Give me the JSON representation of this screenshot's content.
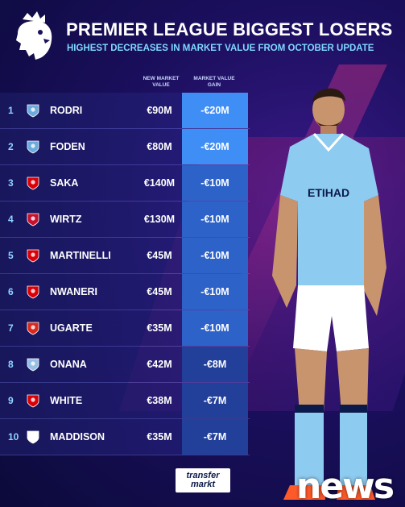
{
  "header": {
    "title": "PREMIER LEAGUE BIGGEST LOSERS",
    "subtitle": "HIGHEST DECREASES IN MARKET VALUE FROM OCTOBER UPDATE"
  },
  "columns": {
    "value": "NEW MARKET VALUE",
    "gain": "MARKET VALUE GAIN"
  },
  "rows": [
    {
      "rank": "1",
      "club_icon": "man-city-crest",
      "name": "RODRI",
      "value": "€90M",
      "gain": "-€20M"
    },
    {
      "rank": "2",
      "club_icon": "man-city-crest",
      "name": "FODEN",
      "value": "€80M",
      "gain": "-€20M"
    },
    {
      "rank": "3",
      "club_icon": "arsenal-crest",
      "name": "SAKA",
      "value": "€140M",
      "gain": "-€10M"
    },
    {
      "rank": "4",
      "club_icon": "liverpool-crest",
      "name": "WIRTZ",
      "value": "€130M",
      "gain": "-€10M"
    },
    {
      "rank": "5",
      "club_icon": "arsenal-crest",
      "name": "MARTINELLI",
      "value": "€45M",
      "gain": "-€10M"
    },
    {
      "rank": "6",
      "club_icon": "arsenal-crest",
      "name": "NWANERI",
      "value": "€45M",
      "gain": "-€10M"
    },
    {
      "rank": "7",
      "club_icon": "man-united-crest",
      "name": "UGARTE",
      "value": "€35M",
      "gain": "-€10M"
    },
    {
      "rank": "8",
      "club_icon": "aston-villa-crest",
      "name": "ONANA",
      "value": "€42M",
      "gain": "-€8M"
    },
    {
      "rank": "9",
      "club_icon": "arsenal-crest",
      "name": "WHITE",
      "value": "€38M",
      "gain": "-€7M"
    },
    {
      "rank": "10",
      "club_icon": "tottenham-crest",
      "name": "MADDISON",
      "value": "€35M",
      "gain": "-€7M"
    }
  ],
  "branding": {
    "transfermarkt_line1": "transfer",
    "transfermarkt_line2": "markt",
    "watermark": "news"
  },
  "colors": {
    "accent_cyan": "#7fd8ff",
    "gain_top": "#3f8ef5",
    "gain_mid": "#2d62c8",
    "gain_low": "#22409a",
    "man_city": "#6cabdd",
    "arsenal": "#db0007",
    "liverpool": "#c8102e",
    "man_united": "#da291c",
    "aston_villa": "#95bfe5",
    "tottenham": "#ffffff"
  }
}
